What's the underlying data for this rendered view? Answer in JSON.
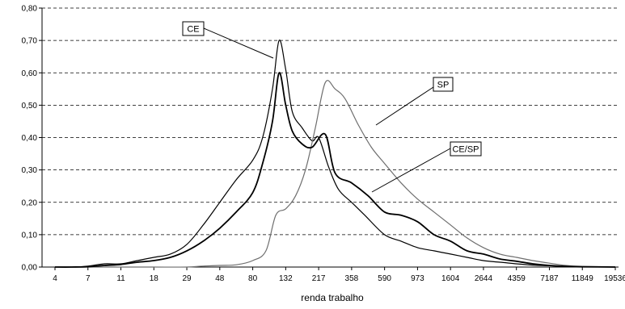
{
  "chart_data": {
    "type": "line",
    "title": "",
    "xlabel": "renda trabalho",
    "ylabel": "",
    "x_tick_labels": [
      "4",
      "7",
      "11",
      "18",
      "29",
      "48",
      "80",
      "132",
      "217",
      "358",
      "590",
      "973",
      "1604",
      "2644",
      "4359",
      "7187",
      "11849",
      "19536"
    ],
    "y_tick_labels": [
      "0,00",
      "0,10",
      "0,20",
      "0,30",
      "0,40",
      "0,50",
      "0,60",
      "0,70",
      "0,80"
    ],
    "ylim": [
      0,
      0.8
    ],
    "grid": "horizontal dashed",
    "colors": {
      "CE": "#000000",
      "SP": "#6e6e6e",
      "CE/SP": "#000000"
    },
    "series": [
      {
        "name": "CE",
        "x": [
          0,
          0.5,
          1,
          1.5,
          2,
          2.5,
          3,
          3.5,
          4,
          4.5,
          5,
          5.5,
          6,
          6.3,
          6.6,
          6.8,
          7,
          7.2,
          7.5,
          7.8,
          8,
          8.3,
          8.6,
          9,
          9.4,
          10,
          10.5,
          11,
          11.5,
          12,
          12.5,
          13,
          13.5,
          14,
          14.5,
          15,
          15.5,
          16,
          17
        ],
        "y": [
          0,
          0,
          0.003,
          0.01,
          0.01,
          0.02,
          0.03,
          0.04,
          0.07,
          0.13,
          0.2,
          0.27,
          0.33,
          0.4,
          0.55,
          0.7,
          0.61,
          0.48,
          0.43,
          0.39,
          0.4,
          0.31,
          0.24,
          0.2,
          0.16,
          0.1,
          0.08,
          0.06,
          0.05,
          0.04,
          0.03,
          0.02,
          0.015,
          0.01,
          0.006,
          0.004,
          0.002,
          0,
          0
        ]
      },
      {
        "name": "SP",
        "x": [
          0,
          1,
          2,
          3,
          4,
          4.5,
          5,
          5.5,
          6,
          6.4,
          6.7,
          7,
          7.3,
          7.6,
          7.9,
          8.2,
          8.5,
          8.8,
          9.2,
          9.6,
          10,
          10.5,
          11,
          11.5,
          12,
          12.5,
          13,
          13.5,
          14,
          14.5,
          15,
          15.5,
          16,
          17
        ],
        "y": [
          0,
          0,
          0,
          0,
          0,
          0.003,
          0.005,
          0.007,
          0.02,
          0.05,
          0.16,
          0.18,
          0.22,
          0.3,
          0.43,
          0.57,
          0.55,
          0.52,
          0.44,
          0.37,
          0.32,
          0.26,
          0.21,
          0.17,
          0.13,
          0.09,
          0.06,
          0.04,
          0.03,
          0.02,
          0.012,
          0.005,
          0.002,
          0
        ]
      },
      {
        "name": "CE/SP",
        "x": [
          0,
          0.5,
          1,
          1.5,
          2,
          2.5,
          3,
          3.5,
          4,
          4.5,
          5,
          5.5,
          6,
          6.3,
          6.6,
          6.8,
          7,
          7.2,
          7.5,
          7.8,
          8.2,
          8.5,
          9,
          9.5,
          10,
          10.5,
          11,
          11.5,
          12,
          12.5,
          13,
          13.5,
          14,
          14.5,
          15,
          15.5,
          16,
          17
        ],
        "y": [
          0,
          0,
          0.001,
          0.005,
          0.008,
          0.015,
          0.02,
          0.03,
          0.05,
          0.08,
          0.12,
          0.17,
          0.23,
          0.32,
          0.45,
          0.6,
          0.5,
          0.42,
          0.38,
          0.37,
          0.41,
          0.29,
          0.26,
          0.22,
          0.17,
          0.16,
          0.14,
          0.1,
          0.08,
          0.05,
          0.04,
          0.025,
          0.018,
          0.01,
          0.005,
          0.002,
          0.001,
          0
        ]
      }
    ],
    "annotations": [
      "CE",
      "SP",
      "CE/SP"
    ]
  }
}
